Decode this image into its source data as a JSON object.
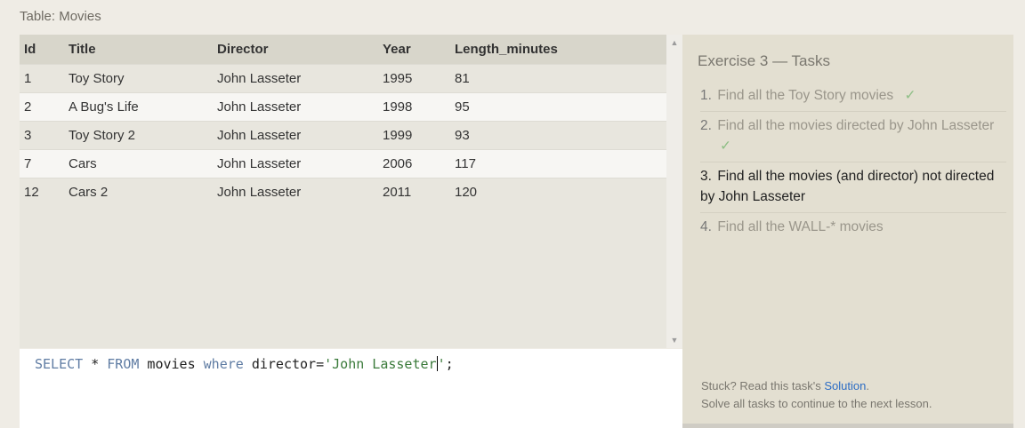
{
  "table_label": "Table: Movies",
  "table": {
    "columns": [
      "Id",
      "Title",
      "Director",
      "Year",
      "Length_minutes"
    ],
    "rows": [
      [
        "1",
        "Toy Story",
        "John Lasseter",
        "1995",
        "81"
      ],
      [
        "2",
        "A Bug's Life",
        "John Lasseter",
        "1998",
        "95"
      ],
      [
        "3",
        "Toy Story 2",
        "John Lasseter",
        "1999",
        "93"
      ],
      [
        "7",
        "Cars",
        "John Lasseter",
        "2006",
        "117"
      ],
      [
        "12",
        "Cars 2",
        "John Lasseter",
        "2011",
        "120"
      ]
    ]
  },
  "editor": {
    "tokens": {
      "select": "SELECT",
      "star": " * ",
      "from": "FROM",
      "table": " movies ",
      "where": "where",
      "column": " director=",
      "string_before_caret": "'John Lasseter",
      "string_after_caret": "'",
      "semicolon": ";"
    }
  },
  "tasks": {
    "title": "Exercise 3 — Tasks",
    "items": [
      {
        "num": "1.",
        "text": "Find all the Toy Story movies",
        "done": true
      },
      {
        "num": "2.",
        "text": "Find all the movies directed by John Lasseter",
        "done": true
      },
      {
        "num": "3.",
        "text": "Find all the movies (and director) not directed by John Lasseter",
        "done": false
      },
      {
        "num": "4.",
        "text": "Find all the WALL-* movies",
        "done": false
      }
    ],
    "check_glyph": "✓",
    "footer": {
      "stuck_prefix": "Stuck? Read this task's ",
      "solution_link": "Solution",
      "stuck_suffix": ".",
      "continue_text": "Solve all tasks to continue to the next lesson."
    }
  }
}
